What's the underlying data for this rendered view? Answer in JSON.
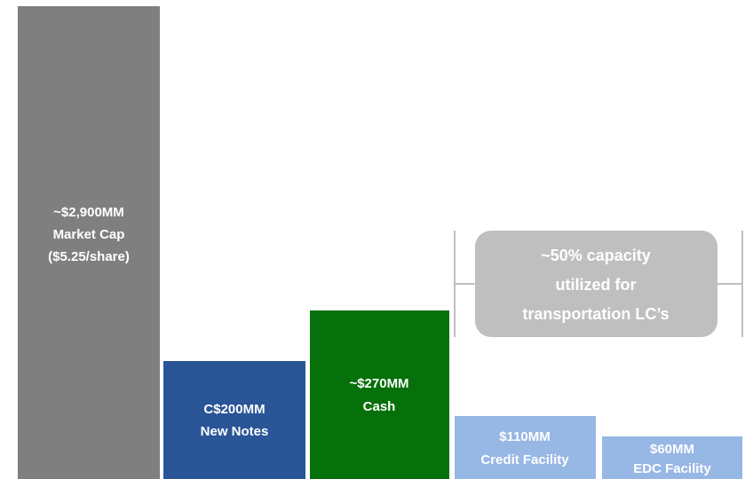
{
  "blocks": [
    {
      "lines": [
        "~$2,900MM",
        "Market Cap",
        "($5.25/share)"
      ]
    },
    {
      "lines": [
        "C$200MM",
        "New Notes"
      ]
    },
    {
      "lines": [
        "~$270MM",
        "Cash"
      ]
    },
    {
      "lines": [
        "$110MM",
        "Credit Facility"
      ]
    },
    {
      "lines": [
        "$60MM",
        "EDC Facility"
      ]
    }
  ],
  "callout": {
    "lines": [
      "~50% capacity",
      "utilized for",
      "transportation LC’s"
    ]
  }
}
